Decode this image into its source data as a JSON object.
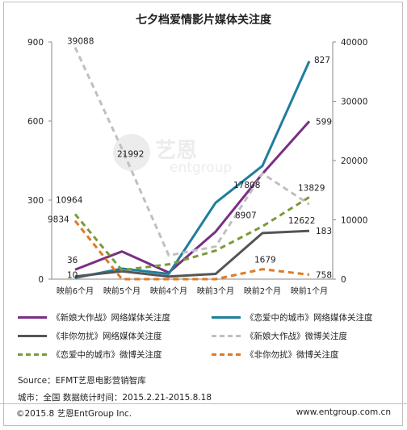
{
  "title": "七夕档爱情影片媒体关注度",
  "chart_data": {
    "type": "line",
    "title": "七夕档爱情影片媒体关注度",
    "categories": [
      "映前6个月",
      "映前5个月",
      "映前4个月",
      "映前3个月",
      "映前2个月",
      "映前1个月"
    ],
    "left_axis": {
      "ticks": [
        "0",
        "300",
        "600",
        "900"
      ],
      "ylim": [
        0,
        900
      ]
    },
    "right_axis": {
      "ticks": [
        "0",
        "10000",
        "20000",
        "30000",
        "40000"
      ],
      "ylim": [
        0,
        40000
      ]
    },
    "series": [
      {
        "name": "《新娘大作战》网络媒体关注度",
        "axis": "left",
        "style": "solid",
        "color": "#7a2f83",
        "values": [
          36,
          105,
          25,
          180,
          400,
          599
        ]
      },
      {
        "name": "《恋爱中的城市》网络媒体关注度",
        "axis": "left",
        "style": "solid",
        "color": "#1f7e9c",
        "values": [
          5,
          40,
          20,
          290,
          430,
          827
        ]
      },
      {
        "name": "《非你勿扰》网络媒体关注度",
        "axis": "left",
        "style": "solid",
        "color": "#555555",
        "values": [
          10,
          30,
          10,
          20,
          175,
          183
        ]
      },
      {
        "name": "《新娘大作战》微博关注度",
        "axis": "right",
        "style": "dashed",
        "color": "#c0c0c0",
        "values": [
          39088,
          21992,
          4000,
          5500,
          17808,
          12622
        ]
      },
      {
        "name": "《恋爱中的城市》微博关注度",
        "axis": "right",
        "style": "dashed",
        "color": "#7a9a3a",
        "values": [
          10964,
          1500,
          2500,
          4800,
          8907,
          13829
        ]
      },
      {
        "name": "《非你勿扰》微博关注度",
        "axis": "right",
        "style": "dashed",
        "color": "#e07a26",
        "values": [
          9834,
          0,
          0,
          0,
          1679,
          758
        ]
      }
    ],
    "data_labels": [
      {
        "text": "36",
        "series": 0,
        "index": 0
      },
      {
        "text": "599",
        "series": 0,
        "index": 5
      },
      {
        "text": "827",
        "series": 1,
        "index": 5
      },
      {
        "text": "183",
        "series": 2,
        "index": 5
      },
      {
        "text": "10",
        "series": 2,
        "index": 0
      },
      {
        "text": "39088",
        "series": 3,
        "index": 0
      },
      {
        "text": "21992",
        "series": 3,
        "index": 1
      },
      {
        "text": "17808",
        "series": 3,
        "index": 4
      },
      {
        "text": "12622",
        "series": 3,
        "index": 5
      },
      {
        "text": "10964",
        "series": 4,
        "index": 0
      },
      {
        "text": "8907",
        "series": 4,
        "index": 4
      },
      {
        "text": "13829",
        "series": 4,
        "index": 5
      },
      {
        "text": "9834",
        "series": 5,
        "index": 0
      },
      {
        "text": "1679",
        "series": 5,
        "index": 4
      },
      {
        "text": "758",
        "series": 5,
        "index": 5
      }
    ],
    "legend_placement": "bottom",
    "grid": false
  },
  "watermark": {
    "text": "艺恩",
    "sub": "entgroup"
  },
  "source": "Source：EFMT艺恩电影营销智库",
  "period": "城市：全国   数据统计时间：2015.2.21-2015.8.18",
  "copyright": "©2015.8  艺恩EntGroup Inc.",
  "url": "www.entgroup.com.cn"
}
